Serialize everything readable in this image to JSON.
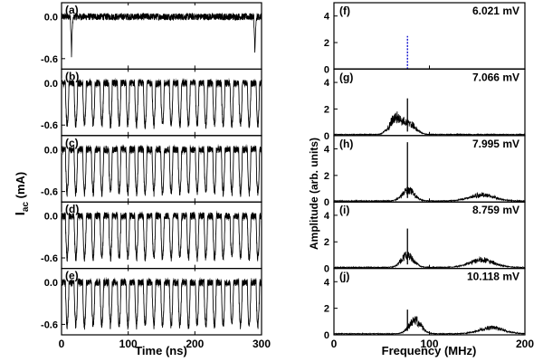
{
  "chart_data": [
    {
      "type": "line",
      "group": "time-domain",
      "xlabel": "Time (ns)",
      "ylabel": "I_ac (mA)",
      "ylabel_main": "I",
      "ylabel_sub": "ac",
      "ylabel_unit": " (mA)",
      "xlim": [
        0,
        300
      ],
      "ylim": [
        -0.75,
        0.2
      ],
      "xticks": [
        "0",
        "100",
        "200",
        "300"
      ],
      "yticks": [
        "0.0",
        "-0.6"
      ],
      "panels": [
        {
          "label": "(a)",
          "pattern": "noise",
          "spike_times_ns": [
            15,
            290
          ],
          "spike_min_mA": -0.58,
          "baseline_mA": 0.0
        },
        {
          "label": "(b)",
          "pattern": "oscillation",
          "period_ns": 13,
          "pulse_min_mA": -0.6,
          "baseline_mA": 0.0
        },
        {
          "label": "(c)",
          "pattern": "oscillation",
          "period_ns": 13,
          "pulse_min_mA": -0.62,
          "baseline_mA": 0.0
        },
        {
          "label": "(d)",
          "pattern": "oscillation",
          "period_ns": 13,
          "pulse_min_mA": -0.6,
          "baseline_mA": 0.0
        },
        {
          "label": "(e)",
          "pattern": "oscillation",
          "period_ns": 13,
          "pulse_min_mA": -0.62,
          "baseline_mA": 0.0
        }
      ]
    },
    {
      "type": "line",
      "group": "spectrum",
      "xlabel": "Frequency (MHz)",
      "ylabel": "Amplitude (arb. units)",
      "xlim": [
        0,
        200
      ],
      "ylim": [
        0,
        5
      ],
      "xticks": [
        "0",
        "100",
        "200"
      ],
      "yticks": [
        "0",
        "2",
        "4"
      ],
      "panels": [
        {
          "label": "(f)",
          "value": "6.021 mV",
          "peak_mhz": 77,
          "peak_amp": 2.5,
          "dashed_peak": true,
          "broad_peaks": []
        },
        {
          "label": "(g)",
          "value": "7.066 mV",
          "peak_mhz": 77,
          "peak_amp": 2.8,
          "dashed_peak": false,
          "broad_peaks": [
            {
              "center_mhz": 65,
              "amp": 1.4
            },
            {
              "center_mhz": 80,
              "amp": 0.8
            }
          ]
        },
        {
          "label": "(h)",
          "value": "7.995 mV",
          "peak_mhz": 77,
          "peak_amp": 4.5,
          "dashed_peak": false,
          "broad_peaks": [
            {
              "center_mhz": 78,
              "amp": 0.9
            },
            {
              "center_mhz": 155,
              "amp": 0.5
            }
          ]
        },
        {
          "label": "(i)",
          "value": "8.759 mV",
          "peak_mhz": 77,
          "peak_amp": 3.0,
          "dashed_peak": false,
          "broad_peaks": [
            {
              "center_mhz": 77,
              "amp": 1.0
            },
            {
              "center_mhz": 155,
              "amp": 0.6
            }
          ]
        },
        {
          "label": "(j)",
          "value": "10.118 mV",
          "peak_mhz": 77,
          "peak_amp": 1.9,
          "dashed_peak": false,
          "broad_peaks": [
            {
              "center_mhz": 85,
              "amp": 1.1
            },
            {
              "center_mhz": 165,
              "amp": 0.5
            }
          ]
        }
      ]
    }
  ],
  "colors": {
    "trace": "#000000",
    "trace_gray": "#8a8a8a",
    "dashed_peak": "#0000cc",
    "frame": "#000000"
  }
}
